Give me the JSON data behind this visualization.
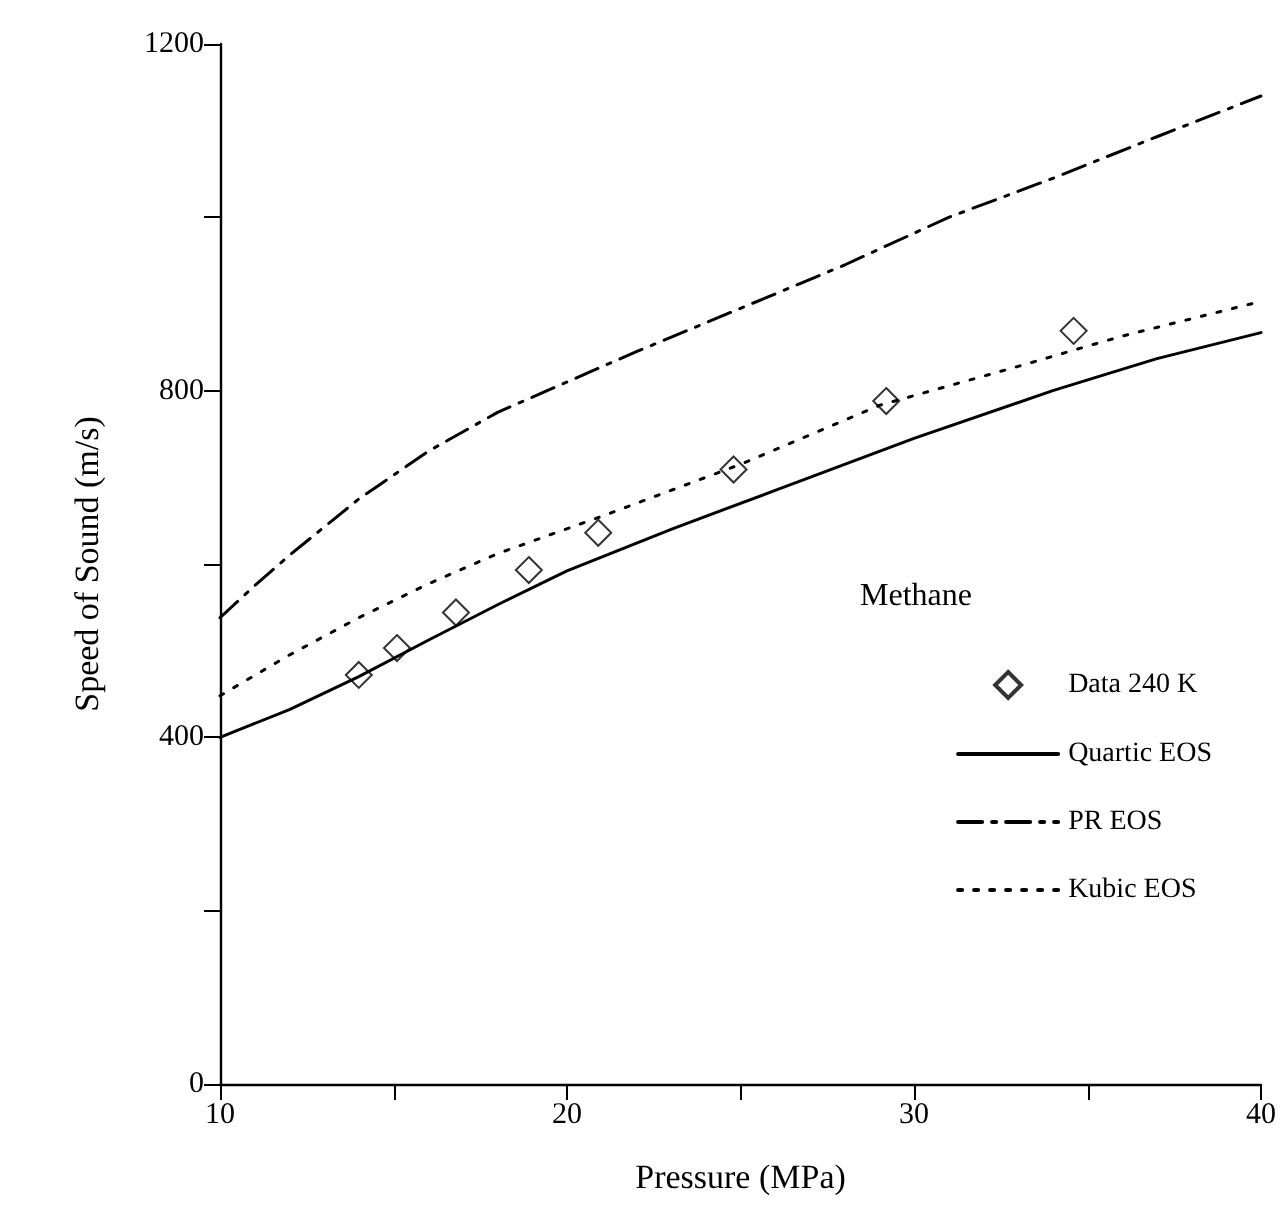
{
  "chart_data": {
    "type": "line",
    "xlabel": "Pressure (MPa)",
    "ylabel": "Speed of Sound (m/s)",
    "legend_title": "Methane",
    "legend": "right",
    "grid": false,
    "xlim": [
      10,
      40
    ],
    "xticks": [
      10,
      {
        "value": 15,
        "label": null
      },
      20,
      {
        "value": 25,
        "label": null
      },
      30,
      {
        "value": 35,
        "label": null
      },
      40
    ],
    "ylim": [
      0,
      1200
    ],
    "yticks": [
      0,
      {
        "value": 200,
        "label": null
      },
      400,
      {
        "value": 600,
        "label": null
      },
      800,
      {
        "value": 1000,
        "label": null
      },
      1200
    ],
    "series": [
      {
        "name": "Data 240 K",
        "type": "scatter",
        "marker": "diamond",
        "color": "#000000",
        "x": [
          14.0,
          15.1,
          16.8,
          18.9,
          20.9,
          24.8,
          29.2,
          34.6
        ],
        "values": [
          472,
          503,
          544,
          593,
          636,
          709,
          788,
          869
        ]
      },
      {
        "name": "Quartic EOS",
        "type": "line",
        "marker": "none",
        "line_style": "solid",
        "color": "#000000",
        "x": [
          10,
          12,
          14,
          16,
          18,
          20,
          23,
          26,
          30,
          34,
          37,
          40
        ],
        "values": [
          400,
          432,
          470,
          512,
          553,
          592,
          640,
          685,
          745,
          800,
          837,
          867
        ]
      },
      {
        "name": "PR EOS",
        "type": "line",
        "marker": "none",
        "line_style": "dashed",
        "color": "#000000",
        "x": [
          10,
          11,
          12,
          14,
          16,
          18,
          20,
          22,
          25,
          28,
          31,
          34,
          37,
          40
        ],
        "values": [
          538,
          575,
          610,
          675,
          730,
          775,
          810,
          845,
          895,
          945,
          1000,
          1045,
          1093,
          1140
        ]
      },
      {
        "name": "Kubic EOS",
        "type": "line",
        "marker": "none",
        "line_style": "dotted",
        "color": "#000000",
        "x": [
          10,
          12,
          14,
          16,
          18,
          21,
          25,
          29,
          33,
          36,
          40
        ],
        "values": [
          448,
          495,
          538,
          577,
          612,
          655,
          715,
          783,
          828,
          863,
          903
        ]
      }
    ]
  }
}
